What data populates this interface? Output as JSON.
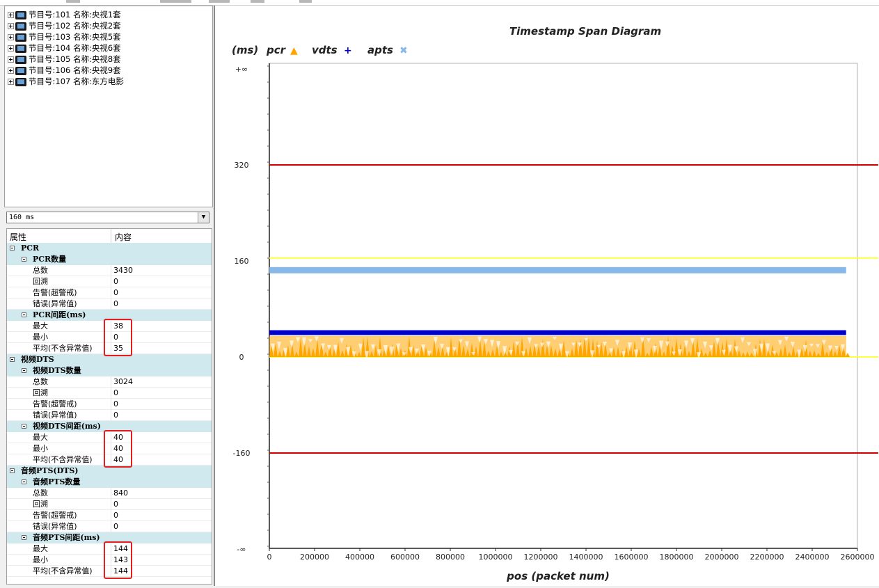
{
  "tree": {
    "items": [
      {
        "prog": "节目号:101",
        "name": "名称:央视1套"
      },
      {
        "prog": "节目号:102",
        "name": "名称:央视2套"
      },
      {
        "prog": "节目号:103",
        "name": "名称:央视5套"
      },
      {
        "prog": "节目号:104",
        "name": "名称:央视6套"
      },
      {
        "prog": "节目号:105",
        "name": "名称:央视8套"
      },
      {
        "prog": "节目号:106",
        "name": "名称:央视9套"
      },
      {
        "prog": "节目号:107",
        "name": "名称:东方电影"
      }
    ]
  },
  "combo": {
    "value": "160 ms"
  },
  "grid": {
    "headers": {
      "property": "属性",
      "content": "内容"
    },
    "rows": [
      {
        "kind": "group",
        "label": "PCR"
      },
      {
        "kind": "sub",
        "label": "PCR数量"
      },
      {
        "kind": "leaf",
        "label": "总数",
        "value": "3430"
      },
      {
        "kind": "leaf",
        "label": "回溯",
        "value": "0"
      },
      {
        "kind": "leaf",
        "label": "告警(超警戒)",
        "value": "0"
      },
      {
        "kind": "leaf",
        "label": "错误(异常值)",
        "value": "0"
      },
      {
        "kind": "sub",
        "label": "PCR间距(ms)"
      },
      {
        "kind": "leaf",
        "label": "最大",
        "value": "38"
      },
      {
        "kind": "leaf",
        "label": "最小",
        "value": "0"
      },
      {
        "kind": "leaf",
        "label": "平均(不含异常值)",
        "value": "35"
      },
      {
        "kind": "group",
        "label": "视频DTS"
      },
      {
        "kind": "sub",
        "label": "视频DTS数量"
      },
      {
        "kind": "leaf",
        "label": "总数",
        "value": "3024"
      },
      {
        "kind": "leaf",
        "label": "回溯",
        "value": "0"
      },
      {
        "kind": "leaf",
        "label": "告警(超警戒)",
        "value": "0"
      },
      {
        "kind": "leaf",
        "label": "错误(异常值)",
        "value": "0"
      },
      {
        "kind": "sub",
        "label": "视频DTS间距(ms)"
      },
      {
        "kind": "leaf",
        "label": "最大",
        "value": "40"
      },
      {
        "kind": "leaf",
        "label": "最小",
        "value": "40"
      },
      {
        "kind": "leaf",
        "label": "平均(不含异常值)",
        "value": "40"
      },
      {
        "kind": "group",
        "label": "音频PTS(DTS)"
      },
      {
        "kind": "sub",
        "label": "音频PTS数量"
      },
      {
        "kind": "leaf",
        "label": "总数",
        "value": "840"
      },
      {
        "kind": "leaf",
        "label": "回溯",
        "value": "0"
      },
      {
        "kind": "leaf",
        "label": "告警(超警戒)",
        "value": "0"
      },
      {
        "kind": "leaf",
        "label": "错误(异常值)",
        "value": "0"
      },
      {
        "kind": "sub",
        "label": "音频PTS间距(ms)"
      },
      {
        "kind": "leaf",
        "label": "最大",
        "value": "144"
      },
      {
        "kind": "leaf",
        "label": "最小",
        "value": "143"
      },
      {
        "kind": "leaf",
        "label": "平均(不含异常值)",
        "value": "144"
      }
    ],
    "highlighted_groups": [
      "PCR间距(ms)",
      "视频DTS间距(ms)",
      "音频PTS间距(ms)"
    ]
  },
  "chart_data": {
    "type": "scatter",
    "title": "Timestamp Span Diagram",
    "xlabel": "pos (packet num)",
    "ylabel": "(ms)",
    "xlim": [
      0,
      2600000
    ],
    "x_ticks": [
      "0",
      "200000",
      "400000",
      "600000",
      "800000",
      "1000000",
      "1200000",
      "1400000",
      "1600000",
      "1800000",
      "2000000",
      "2200000",
      "2400000",
      "2600000"
    ],
    "y_ticks": [
      "+∞",
      "320",
      "160",
      "0",
      "-160",
      "-∞"
    ],
    "legend": [
      "pcr",
      "vdts",
      "apts"
    ],
    "legend_marks": {
      "pcr": "▲",
      "vdts": "+",
      "apts": "✖"
    },
    "colors": {
      "pcr": "#ffa500",
      "vdts": "#0000cc",
      "apts": "#87b8e8",
      "alarm": "#cc0000",
      "warn": "#ffff40"
    },
    "reference_lines": [
      {
        "y": 320,
        "color": "#cc0000"
      },
      {
        "y": 165,
        "color": "#ffff40"
      },
      {
        "y": 0,
        "color": "#ffff40"
      },
      {
        "y": -160,
        "color": "#cc0000"
      }
    ],
    "series": [
      {
        "name": "apts",
        "y": 144,
        "x_range": [
          0,
          2550000
        ]
      },
      {
        "name": "vdts",
        "y": 40,
        "x_range": [
          0,
          2550000
        ]
      },
      {
        "name": "pcr",
        "y_range": [
          0,
          35
        ],
        "x_range": [
          0,
          2550000
        ]
      }
    ]
  }
}
